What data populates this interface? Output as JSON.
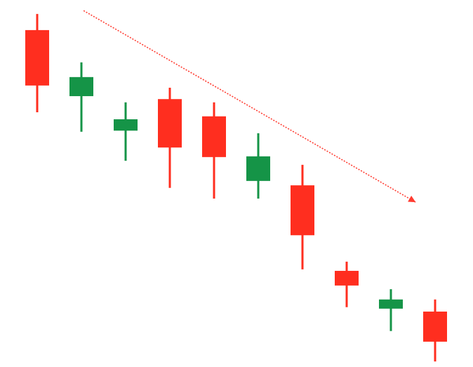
{
  "chart_data": {
    "type": "candlestick",
    "title": "",
    "xlabel": "",
    "ylabel": "",
    "axes_visible": false,
    "grid": false,
    "ylim": [
      0,
      100
    ],
    "colors": {
      "bullish": "#159447",
      "bearish": "#ff2e1f",
      "trend": "#ff3b30"
    },
    "candles": [
      {
        "open": 91.8,
        "high": 96.2,
        "low": 69.4,
        "close": 76.7
      },
      {
        "open": 73.8,
        "high": 83.0,
        "low": 64.1,
        "close": 79.0
      },
      {
        "open": 64.4,
        "high": 72.1,
        "low": 56.2,
        "close": 67.5
      },
      {
        "open": 73.0,
        "high": 76.1,
        "low": 48.8,
        "close": 59.8
      },
      {
        "open": 68.3,
        "high": 72.1,
        "low": 45.9,
        "close": 57.2
      },
      {
        "open": 50.7,
        "high": 63.7,
        "low": 45.9,
        "close": 57.4
      },
      {
        "open": 49.5,
        "high": 55.1,
        "low": 26.6,
        "close": 35.9
      },
      {
        "open": 26.2,
        "high": 28.7,
        "low": 16.3,
        "close": 22.2
      },
      {
        "open": 15.9,
        "high": 21.2,
        "low": 9.8,
        "close": 18.4
      },
      {
        "open": 15.1,
        "high": 18.4,
        "low": 1.5,
        "close": 6.9
      }
    ],
    "annotations": [
      {
        "type": "dotted-arrow",
        "direction": "downtrend",
        "from": {
          "index": 1.05,
          "price": 97.1
        },
        "to": {
          "index": 8.56,
          "price": 44.9
        }
      }
    ]
  }
}
